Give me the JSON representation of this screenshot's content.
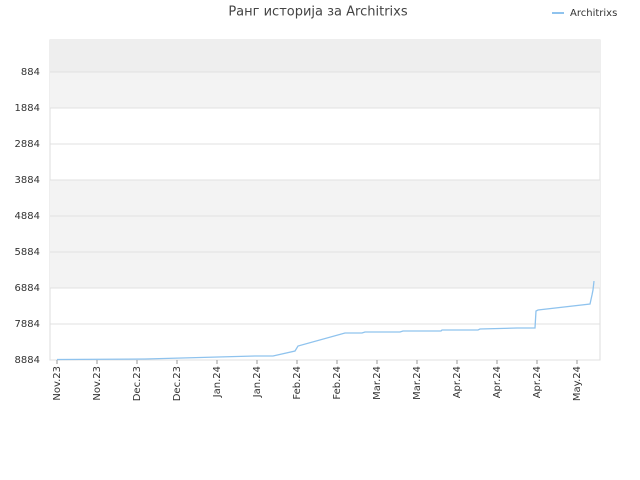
{
  "chart_data": {
    "type": "line",
    "title": "Ранг историја за Architrixs",
    "x": [
      0,
      2.2,
      3.125,
      4.025,
      4.95,
      5.4,
      5.95,
      6.025,
      7.2,
      7.625,
      7.7,
      8.575,
      8.65,
      9.6,
      9.625,
      10.525,
      10.575,
      11.5,
      11.95,
      11.975,
      12.025,
      13.325,
      13.375,
      13.4,
      13.425
    ],
    "series": [
      {
        "name": "Architrixs",
        "color": "#8fc3ee",
        "values": [
          8870,
          8856,
          8828,
          8800,
          8773,
          8773,
          8634,
          8495,
          8134,
          8134,
          8106,
          8106,
          8078,
          8078,
          8051,
          8051,
          8023,
          7995,
          7995,
          7523,
          7495,
          7328,
          7079,
          6940,
          6690
        ]
      }
    ],
    "xlim": [
      -0.175,
      13.575
    ],
    "xticks": [
      {
        "value": 0,
        "label": "Nov.23"
      },
      {
        "value": 1,
        "label": "Nov.23"
      },
      {
        "value": 2,
        "label": "Dec.23"
      },
      {
        "value": 3,
        "label": "Dec.23"
      },
      {
        "value": 4,
        "label": "Jan.24"
      },
      {
        "value": 5,
        "label": "Jan.24"
      },
      {
        "value": 6,
        "label": "Feb.24"
      },
      {
        "value": 7,
        "label": "Feb.24"
      },
      {
        "value": 8,
        "label": "Mar.24"
      },
      {
        "value": 9,
        "label": "Mar.24"
      },
      {
        "value": 10,
        "label": "Apr.24"
      },
      {
        "value": 11,
        "label": "Apr.24"
      },
      {
        "value": 12,
        "label": "Apr.24"
      },
      {
        "value": 13,
        "label": "May.24"
      }
    ],
    "ylim": [
      8884,
      -5
    ],
    "yticks": [
      884,
      1884,
      2884,
      3884,
      4884,
      5884,
      6884,
      7884,
      8884
    ],
    "grid": true,
    "legend": "top-right"
  }
}
